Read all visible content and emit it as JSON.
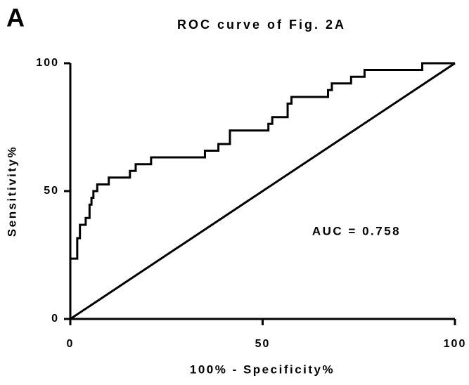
{
  "chart_data": {
    "type": "line",
    "panel_label": "A",
    "title": "ROC curve of Fig. 2A",
    "xlabel": "100% - Specificity%",
    "ylabel": "Sensitivity%",
    "annotation": "AUC = 0.758",
    "xlim": [
      0,
      100
    ],
    "ylim": [
      0,
      100
    ],
    "xticks": [
      0,
      50,
      100
    ],
    "yticks": [
      0,
      50,
      100
    ],
    "series": [
      {
        "color": "#000000",
        "x": [
          0,
          0,
          1.8,
          1.8,
          2.5,
          2.5,
          4,
          4,
          5,
          5,
          5.5,
          5.5,
          6,
          6,
          7,
          7,
          10,
          10,
          15.5,
          15.5,
          17,
          17,
          21,
          21,
          35,
          35,
          38.5,
          38.5,
          41.5,
          41.5,
          51.5,
          51.5,
          52.5,
          52.5,
          56.5,
          56.5,
          57.5,
          57.5,
          67,
          67,
          68,
          68,
          73,
          73,
          76.5,
          76.5,
          91.5,
          91.5,
          100
        ],
        "values": [
          0,
          23.6,
          23.6,
          31.6,
          31.6,
          36.8,
          36.8,
          39.5,
          39.5,
          44.7,
          44.7,
          47.4,
          47.4,
          50,
          50,
          52.6,
          52.6,
          55.3,
          55.3,
          57.9,
          57.9,
          60.5,
          60.5,
          63.2,
          63.2,
          65.8,
          65.8,
          68.4,
          68.4,
          73.7,
          73.7,
          76.3,
          76.3,
          78.9,
          78.9,
          84.2,
          84.2,
          86.8,
          86.8,
          89.5,
          89.5,
          92.1,
          92.1,
          94.7,
          94.7,
          97.4,
          97.4,
          100,
          100
        ]
      },
      {
        "color": "#000000",
        "x": [
          0,
          100
        ],
        "values": [
          0,
          100
        ]
      }
    ]
  }
}
